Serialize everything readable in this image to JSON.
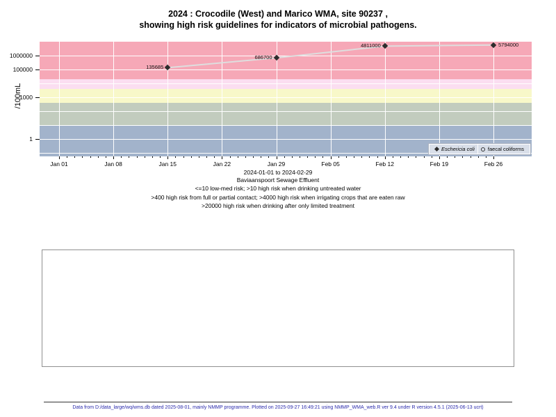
{
  "page": {
    "footer": "Data from D:/data_large/wq/wms.db dated 2025-08-01, mainly NMMP programme. Plotted on 2025-09-27 16:49:21 using NMMP_WMA_web.R ver 9.4 under R version 4.5.1 (2025-06-13 ucrt)"
  },
  "chart_data": {
    "type": "scatter",
    "title": "2024 : Crocodile (West) and Marico WMA, site 90237 , showing high risk guidelines for indicators of microbial pathogens.",
    "title_lines": [
      "2024 : Crocodile (West) and Marico WMA, site 90237 ,",
      "showing high risk guidelines for indicators of microbial pathogens."
    ],
    "subtitle": "Baviaanspoort Sewage Effluent",
    "risk_notes": [
      "<=10 low-med risk; >10 high risk when drinking untreated water",
      ">400 high risk from full or partial contact; >4000 high risk when irrigating crops that are eaten raw",
      ">20000 high risk when drinking after only limited treatment"
    ],
    "x_axis": {
      "label": "2024-01-01 to 2024-02-29",
      "tick_labels": [
        "Jan 01",
        "Jan 08",
        "Jan 15",
        "Jan 22",
        "Jan 29",
        "Feb 05",
        "Feb 12",
        "Feb 19",
        "Feb 26"
      ],
      "tick_days": [
        0,
        7,
        14,
        21,
        28,
        35,
        42,
        49,
        56
      ],
      "range_days": [
        0,
        56
      ],
      "minor_tick_every_days": 1
    },
    "y_axis": {
      "label": "/100mL",
      "scale": "log10",
      "tick_values": [
        1,
        1000,
        100000,
        1000000
      ],
      "tick_labels": [
        "1",
        "1000",
        "100000",
        "1000000"
      ],
      "log_top": 7,
      "log_bottom": -1.25,
      "grid_decades": [
        -1,
        0,
        1,
        2,
        3,
        4,
        5,
        6
      ]
    },
    "series": [
      {
        "name": "Eschericia coli",
        "marker": "filled-diamond",
        "marker_color": "#2d2d2d",
        "line_color": "#dedede",
        "x_dates": [
          "2024-01-15",
          "2024-01-29",
          "2024-02-12",
          "2024-02-26"
        ],
        "x_days": [
          14,
          28,
          42,
          56
        ],
        "values": [
          135685,
          686700,
          4811000,
          5794000
        ],
        "value_labels": [
          "135685",
          "686700",
          "4811000",
          "5794000"
        ],
        "label_sides": [
          "left",
          "left",
          "left",
          "right"
        ]
      },
      {
        "name": "faecal coliforms",
        "marker": "open-circle",
        "values": []
      }
    ],
    "risk_bands": [
      {
        "label": ">20000",
        "min": 20000,
        "max": null,
        "color": "#f6a8b7"
      },
      {
        "label": "4000-20000",
        "min": 4000,
        "max": 20000,
        "color": "#fbdef1"
      },
      {
        "label": "400-4000",
        "min": 400,
        "max": 4000,
        "color": "#f8f8c9"
      },
      {
        "label": "10-400",
        "min": 10,
        "max": 400,
        "color": "#c2ccbe"
      },
      {
        "label": "<=10",
        "min": null,
        "max": 10,
        "color": "#a2b3cb"
      }
    ],
    "legend": {
      "position": "bottom-right",
      "items": [
        {
          "label": "Eschericia coli",
          "marker": "filled-diamond",
          "italic": true
        },
        {
          "label": "faecal coliforms",
          "marker": "open-circle",
          "italic": false
        }
      ]
    }
  }
}
